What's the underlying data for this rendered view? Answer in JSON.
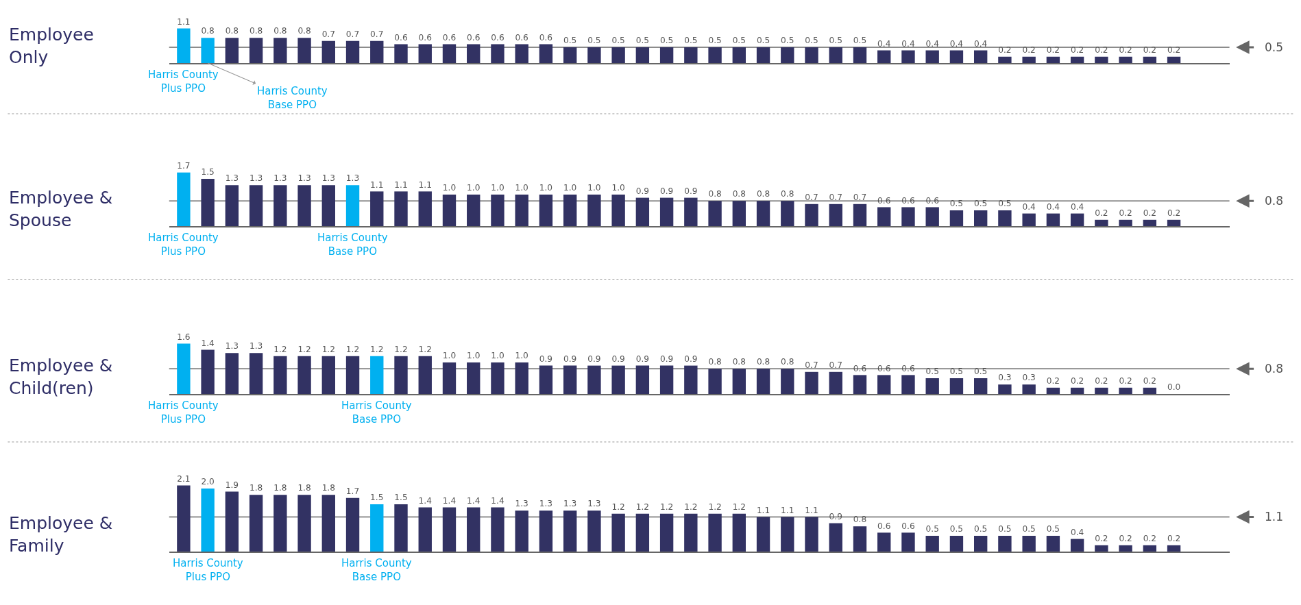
{
  "chart_data": [
    {
      "type": "bar",
      "title": "Employee\nOnly",
      "categories": [
        null,
        null,
        null,
        null,
        null,
        null,
        null,
        null,
        null,
        null,
        null,
        null,
        null,
        null,
        null,
        null,
        null,
        null,
        null,
        null,
        null,
        null,
        null,
        null,
        null,
        null,
        null,
        null,
        null,
        null,
        null,
        null,
        null,
        null,
        null,
        null,
        null,
        null,
        null,
        null,
        null,
        null
      ],
      "values": [
        1.1,
        0.8,
        0.8,
        0.8,
        0.8,
        0.8,
        0.7,
        0.7,
        0.7,
        0.6,
        0.6,
        0.6,
        0.6,
        0.6,
        0.6,
        0.6,
        0.5,
        0.5,
        0.5,
        0.5,
        0.5,
        0.5,
        0.5,
        0.5,
        0.5,
        0.5,
        0.5,
        0.5,
        0.5,
        0.4,
        0.4,
        0.4,
        0.4,
        0.4,
        0.2,
        0.2,
        0.2,
        0.2,
        0.2,
        0.2,
        0.2,
        0.2
      ],
      "value_labels": [
        "1.1",
        "0.8",
        "0.8",
        "0.8",
        "0.8",
        "0.8",
        "0.7",
        "0.7",
        "0.7",
        "0.6",
        "0.6",
        "0.6",
        "0.6",
        "0.6",
        "0.6",
        "0.6",
        "0.5",
        "0.5",
        "0.5",
        "0.5",
        "0.5",
        "0.5",
        "0.5",
        "0.5",
        "0.5",
        "0.5",
        "0.5",
        "0.5",
        "0.5",
        "0.4",
        "0.4",
        "0.4",
        "0.4",
        "0.4",
        "0.2",
        "0.2",
        "0.2",
        "0.2",
        "0.2",
        "0.2",
        "0.2",
        "0.2"
      ],
      "colors": [
        "#00b0f0",
        "#00b0f0",
        "#323263",
        "#323263",
        "#323263",
        "#323263",
        "#323263",
        "#323263",
        "#323263",
        "#323263",
        "#323263",
        "#323263",
        "#323263",
        "#323263",
        "#323263",
        "#323263",
        "#323263",
        "#323263",
        "#323263",
        "#323263",
        "#323263",
        "#323263",
        "#323263",
        "#323263",
        "#323263",
        "#323263",
        "#323263",
        "#323263",
        "#323263",
        "#323263",
        "#323263",
        "#323263",
        "#323263",
        "#323263",
        "#323263",
        "#323263",
        "#323263",
        "#323263",
        "#323263",
        "#323263",
        "#323263",
        "#323263"
      ],
      "ref_lines": [
        {
          "axis": "y",
          "value": 0.5,
          "label": "0.5",
          "color": "#666666"
        }
      ],
      "annotations": [
        "Harris County\nPlus PPO",
        "Harris County\nBase PPO"
      ]
    },
    {
      "type": "bar",
      "title": "Employee &\nSpouse",
      "categories": [
        null,
        null,
        null,
        null,
        null,
        null,
        null,
        null,
        null,
        null,
        null,
        null,
        null,
        null,
        null,
        null,
        null,
        null,
        null,
        null,
        null,
        null,
        null,
        null,
        null,
        null,
        null,
        null,
        null,
        null,
        null,
        null,
        null,
        null,
        null,
        null,
        null,
        null,
        null,
        null,
        null,
        null
      ],
      "values": [
        1.7,
        1.5,
        1.3,
        1.3,
        1.3,
        1.3,
        1.3,
        1.3,
        1.1,
        1.1,
        1.1,
        1.0,
        1.0,
        1.0,
        1.0,
        1.0,
        1.0,
        1.0,
        1.0,
        0.9,
        0.9,
        0.9,
        0.8,
        0.8,
        0.8,
        0.8,
        0.7,
        0.7,
        0.7,
        0.6,
        0.6,
        0.6,
        0.5,
        0.5,
        0.5,
        0.4,
        0.4,
        0.4,
        0.2,
        0.2,
        0.2,
        0.2
      ],
      "value_labels": [
        "1.7",
        "1.5",
        "1.3",
        "1.3",
        "1.3",
        "1.3",
        "1.3",
        "1.3",
        "1.1",
        "1.1",
        "1.1",
        "1.0",
        "1.0",
        "1.0",
        "1.0",
        "1.0",
        "1.0",
        "1.0",
        "1.0",
        "0.9",
        "0.9",
        "0.9",
        "0.8",
        "0.8",
        "0.8",
        "0.8",
        "0.7",
        "0.7",
        "0.7",
        "0.6",
        "0.6",
        "0.6",
        "0.5",
        "0.5",
        "0.5",
        "0.4",
        "0.4",
        "0.4",
        "0.2",
        "0.2",
        "0.2",
        "0.2"
      ],
      "colors": [
        "#00b0f0",
        "#323263",
        "#323263",
        "#323263",
        "#323263",
        "#323263",
        "#323263",
        "#00b0f0",
        "#323263",
        "#323263",
        "#323263",
        "#323263",
        "#323263",
        "#323263",
        "#323263",
        "#323263",
        "#323263",
        "#323263",
        "#323263",
        "#323263",
        "#323263",
        "#323263",
        "#323263",
        "#323263",
        "#323263",
        "#323263",
        "#323263",
        "#323263",
        "#323263",
        "#323263",
        "#323263",
        "#323263",
        "#323263",
        "#323263",
        "#323263",
        "#323263",
        "#323263",
        "#323263",
        "#323263",
        "#323263",
        "#323263",
        "#323263"
      ],
      "ref_lines": [
        {
          "axis": "y",
          "value": 0.8,
          "label": "0.8",
          "color": "#666666"
        }
      ],
      "annotations": [
        "Harris County\nPlus PPO",
        "Harris County\nBase PPO"
      ]
    },
    {
      "type": "bar",
      "title": "Employee &\nChild(ren)",
      "categories": [
        null,
        null,
        null,
        null,
        null,
        null,
        null,
        null,
        null,
        null,
        null,
        null,
        null,
        null,
        null,
        null,
        null,
        null,
        null,
        null,
        null,
        null,
        null,
        null,
        null,
        null,
        null,
        null,
        null,
        null,
        null,
        null,
        null,
        null,
        null,
        null,
        null,
        null,
        null,
        null,
        null,
        null
      ],
      "values": [
        1.6,
        1.4,
        1.3,
        1.3,
        1.2,
        1.2,
        1.2,
        1.2,
        1.2,
        1.2,
        1.2,
        1.0,
        1.0,
        1.0,
        1.0,
        0.9,
        0.9,
        0.9,
        0.9,
        0.9,
        0.9,
        0.9,
        0.8,
        0.8,
        0.8,
        0.8,
        0.7,
        0.7,
        0.6,
        0.6,
        0.6,
        0.5,
        0.5,
        0.5,
        0.3,
        0.3,
        0.2,
        0.2,
        0.2,
        0.2,
        0.2,
        0.0
      ],
      "value_labels": [
        "1.6",
        "1.4",
        "1.3",
        "1.3",
        "1.2",
        "1.2",
        "1.2",
        "1.2",
        "1.2",
        "1.2",
        "1.2",
        "1.0",
        "1.0",
        "1.0",
        "1.0",
        "0.9",
        "0.9",
        "0.9",
        "0.9",
        "0.9",
        "0.9",
        "0.9",
        "0.8",
        "0.8",
        "0.8",
        "0.8",
        "0.7",
        "0.7",
        "0.6",
        "0.6",
        "0.6",
        "0.5",
        "0.5",
        "0.5",
        "0.3",
        "0.3",
        "0.2",
        "0.2",
        "0.2",
        "0.2",
        "0.2",
        "0.0"
      ],
      "colors": [
        "#00b0f0",
        "#323263",
        "#323263",
        "#323263",
        "#323263",
        "#323263",
        "#323263",
        "#323263",
        "#00b0f0",
        "#323263",
        "#323263",
        "#323263",
        "#323263",
        "#323263",
        "#323263",
        "#323263",
        "#323263",
        "#323263",
        "#323263",
        "#323263",
        "#323263",
        "#323263",
        "#323263",
        "#323263",
        "#323263",
        "#323263",
        "#323263",
        "#323263",
        "#323263",
        "#323263",
        "#323263",
        "#323263",
        "#323263",
        "#323263",
        "#323263",
        "#323263",
        "#323263",
        "#323263",
        "#323263",
        "#323263",
        "#323263",
        "#323263"
      ],
      "ref_lines": [
        {
          "axis": "y",
          "value": 0.8,
          "label": "0.8",
          "color": "#666666"
        }
      ],
      "annotations": [
        "Harris County\nPlus PPO",
        "Harris County\nBase PPO"
      ]
    },
    {
      "type": "bar",
      "title": "Employee &\nFamily",
      "categories": [
        null,
        null,
        null,
        null,
        null,
        null,
        null,
        null,
        null,
        null,
        null,
        null,
        null,
        null,
        null,
        null,
        null,
        null,
        null,
        null,
        null,
        null,
        null,
        null,
        null,
        null,
        null,
        null,
        null,
        null,
        null,
        null,
        null,
        null,
        null,
        null,
        null,
        null,
        null,
        null,
        null,
        null
      ],
      "values": [
        2.1,
        2.0,
        1.9,
        1.8,
        1.8,
        1.8,
        1.8,
        1.7,
        1.5,
        1.5,
        1.4,
        1.4,
        1.4,
        1.4,
        1.3,
        1.3,
        1.3,
        1.3,
        1.2,
        1.2,
        1.2,
        1.2,
        1.2,
        1.2,
        1.1,
        1.1,
        1.1,
        0.9,
        0.8,
        0.6,
        0.6,
        0.5,
        0.5,
        0.5,
        0.5,
        0.5,
        0.5,
        0.4,
        0.2,
        0.2,
        0.2,
        0.2
      ],
      "value_labels": [
        "2.1",
        "2.0",
        "1.9",
        "1.8",
        "1.8",
        "1.8",
        "1.8",
        "1.7",
        "1.5",
        "1.5",
        "1.4",
        "1.4",
        "1.4",
        "1.4",
        "1.3",
        "1.3",
        "1.3",
        "1.3",
        "1.2",
        "1.2",
        "1.2",
        "1.2",
        "1.2",
        "1.2",
        "1.1",
        "1.1",
        "1.1",
        "0.9",
        "0.8",
        "0.6",
        "0.6",
        "0.5",
        "0.5",
        "0.5",
        "0.5",
        "0.5",
        "0.5",
        "0.4",
        "0.2",
        "0.2",
        "0.2",
        "0.2"
      ],
      "colors": [
        "#323263",
        "#00b0f0",
        "#323263",
        "#323263",
        "#323263",
        "#323263",
        "#323263",
        "#323263",
        "#00b0f0",
        "#323263",
        "#323263",
        "#323263",
        "#323263",
        "#323263",
        "#323263",
        "#323263",
        "#323263",
        "#323263",
        "#323263",
        "#323263",
        "#323263",
        "#323263",
        "#323263",
        "#323263",
        "#323263",
        "#323263",
        "#323263",
        "#323263",
        "#323263",
        "#323263",
        "#323263",
        "#323263",
        "#323263",
        "#323263",
        "#323263",
        "#323263",
        "#323263",
        "#323263",
        "#323263",
        "#323263",
        "#323263",
        "#323263"
      ],
      "ref_lines": [
        {
          "axis": "y",
          "value": 1.1,
          "label": "1.1",
          "color": "#666666"
        }
      ],
      "annotations": [
        "Harris County\nPlus PPO",
        "Harris County\nBase PPO"
      ]
    }
  ]
}
